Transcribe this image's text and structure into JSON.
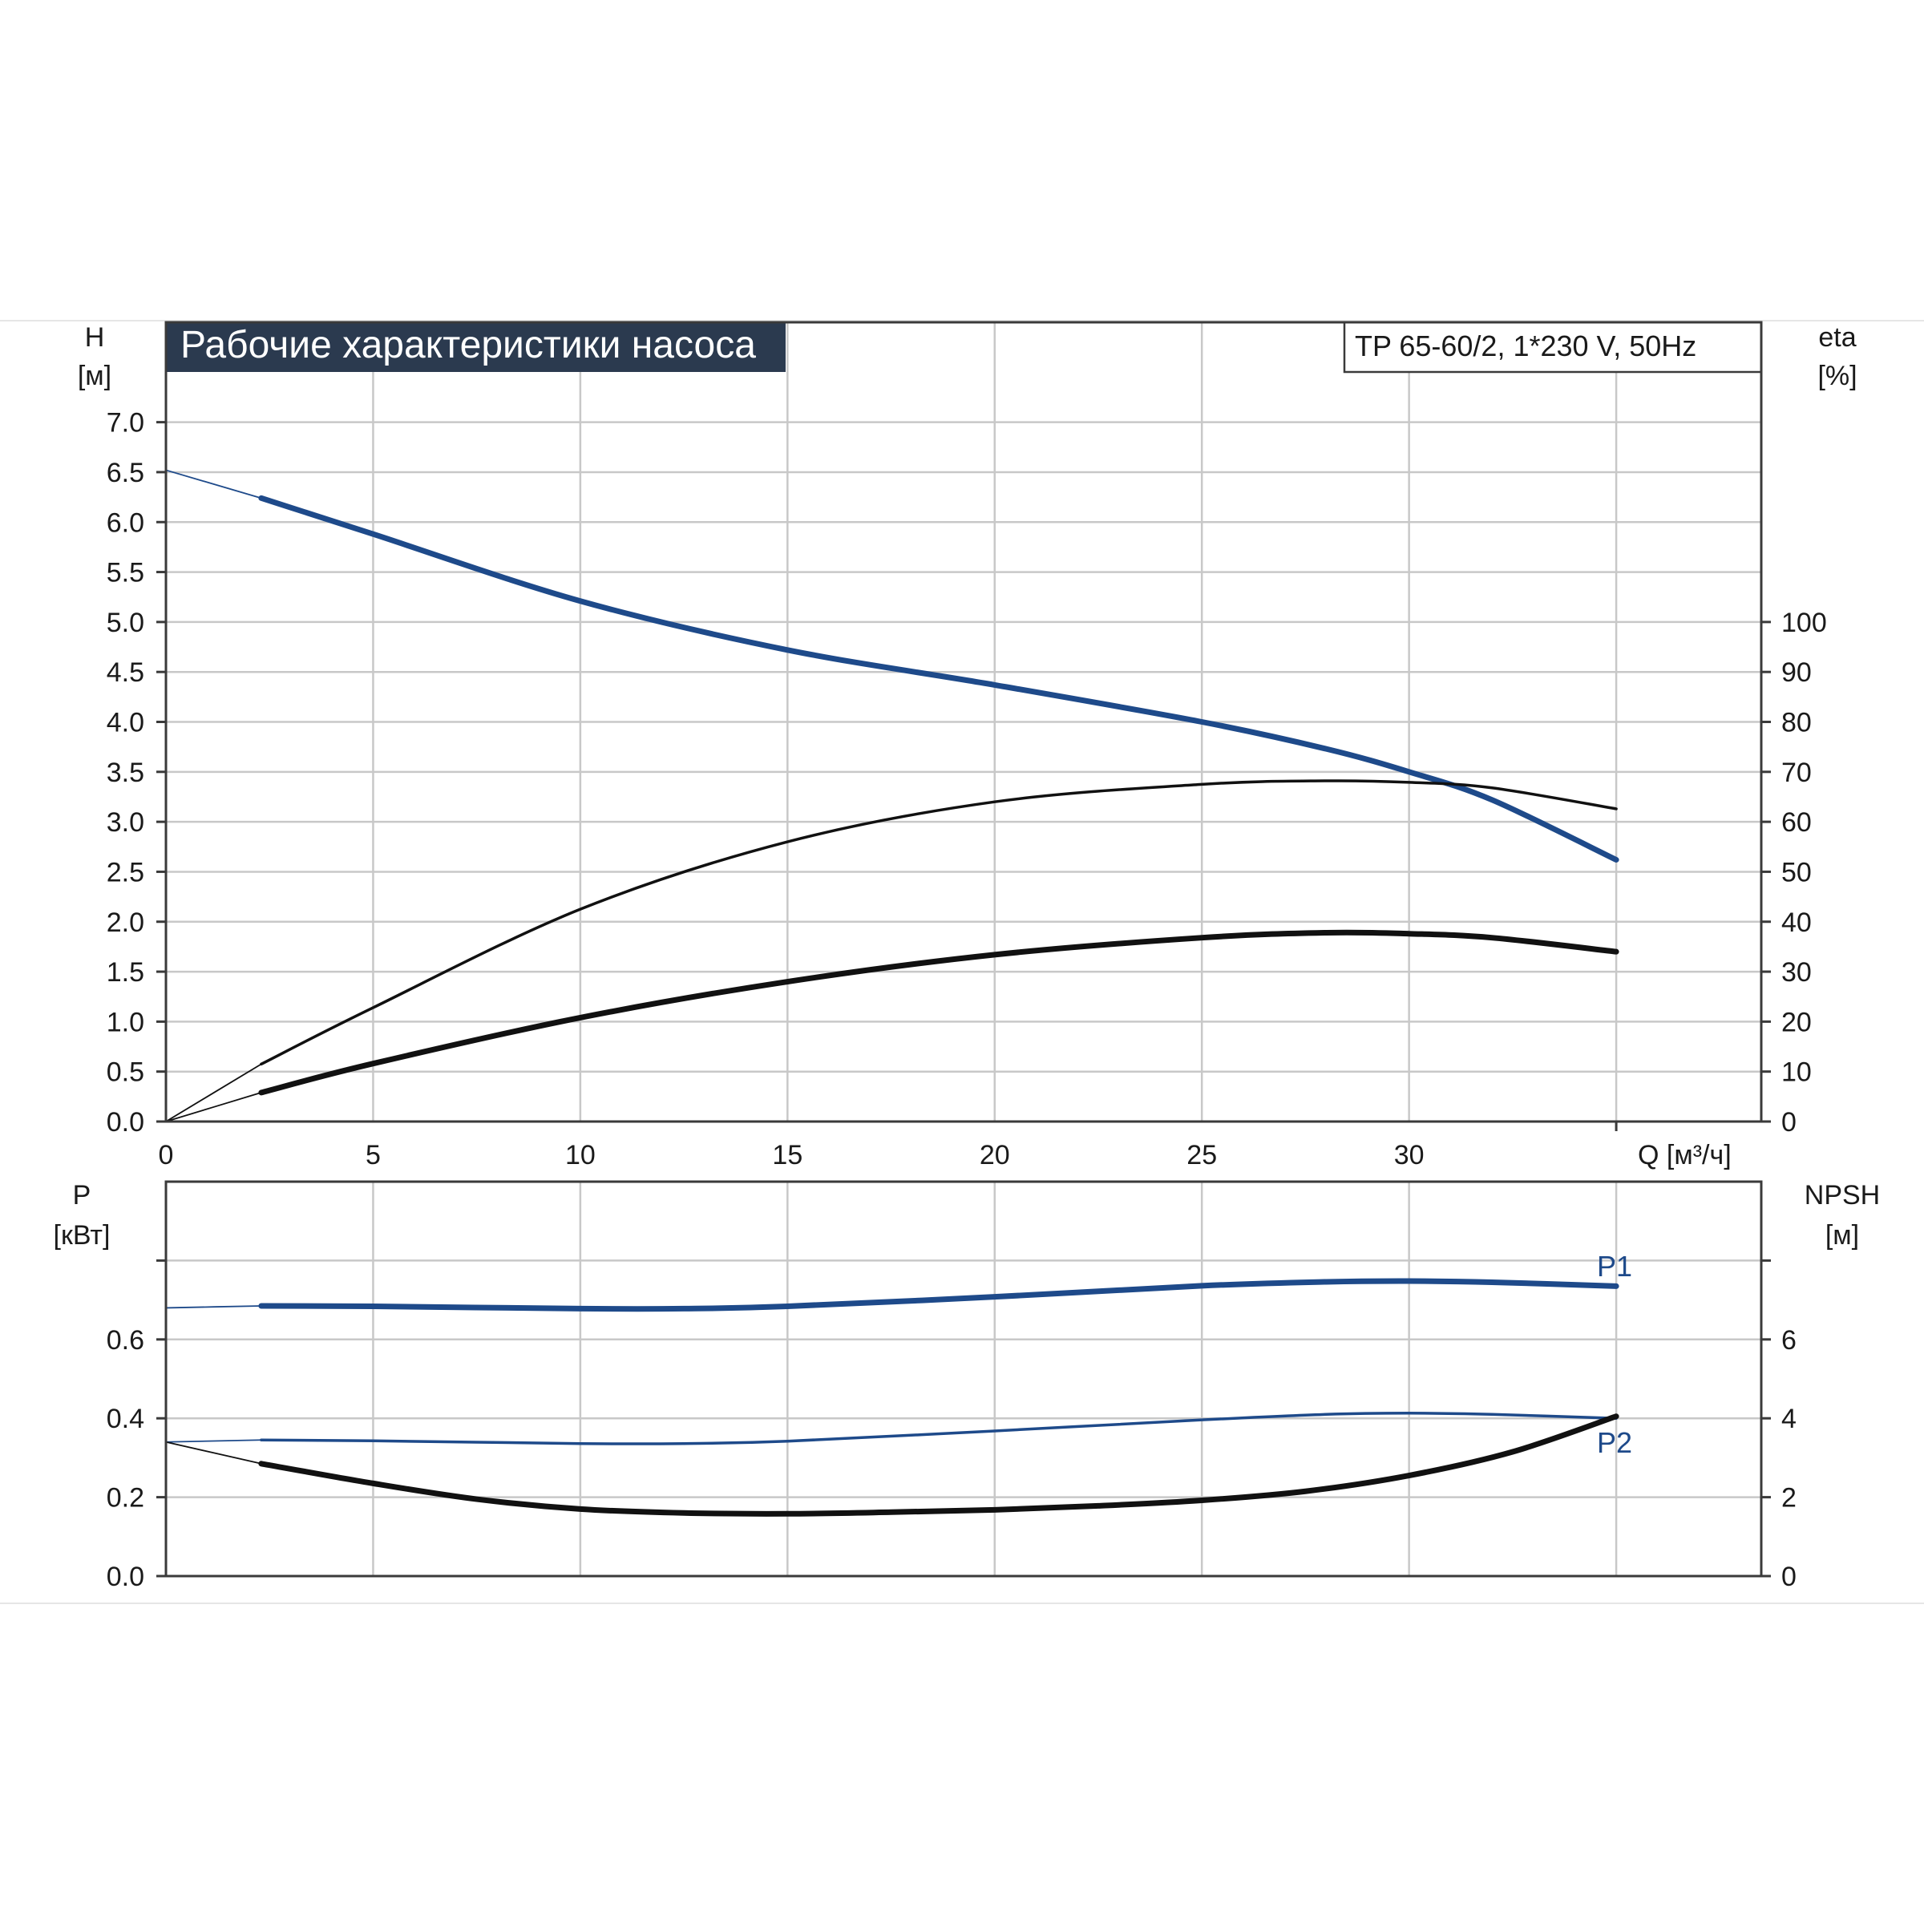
{
  "title": "Рабочие характеристики насоса",
  "model": "TP 65-60/2, 1*230 V, 50Hz",
  "colors": {
    "blue": "#1e4a8a",
    "black": "#111111",
    "title_bg": "#2b3a4f"
  },
  "top": {
    "left_axis": {
      "label_line1": "H",
      "label_line2": "[м]",
      "ticks": [
        "0.0",
        "0.5",
        "1.0",
        "1.5",
        "2.0",
        "2.5",
        "3.0",
        "3.5",
        "4.0",
        "4.5",
        "5.0",
        "5.5",
        "6.0",
        "6.5",
        "7.0"
      ],
      "range": [
        0,
        8
      ]
    },
    "right_axis": {
      "label_line1": "eta",
      "label_line2": "[%]",
      "ticks": [
        "0",
        "10",
        "20",
        "30",
        "40",
        "50",
        "60",
        "70",
        "80",
        "90",
        "100"
      ],
      "range": [
        0,
        160
      ]
    },
    "x_axis": {
      "label": "Q [м³/ч]",
      "ticks": [
        "0",
        "5",
        "10",
        "15",
        "20",
        "25",
        "30"
      ],
      "range": [
        0,
        38.5
      ]
    }
  },
  "bottom": {
    "left_axis": {
      "label_line1": "P",
      "label_line2": "[кВт]",
      "ticks": [
        "0.0",
        "0.2",
        "0.4",
        "0.6"
      ],
      "range": [
        0,
        1.0
      ]
    },
    "right_axis": {
      "label_line1": "NPSH",
      "label_line2": "[м]",
      "ticks": [
        "0",
        "2",
        "4",
        "6"
      ],
      "range": [
        0,
        10
      ]
    },
    "p1_label": "P1",
    "p2_label": "P2"
  },
  "chart_data": [
    {
      "type": "line",
      "title": "Рабочие характеристики насоса",
      "xlabel": "Q [м³/ч]",
      "ylabel": "H [м]",
      "y2label": "eta [%]",
      "xlim": [
        0,
        38.5
      ],
      "ylim": [
        0,
        8
      ],
      "y2lim": [
        0,
        160
      ],
      "grid": true,
      "series": [
        {
          "axis": "left",
          "color": "#1e4a8a",
          "style": "head",
          "x": [
            0,
            2.3,
            5,
            10,
            15,
            20,
            25,
            28,
            30,
            32,
            35
          ],
          "y": [
            6.52,
            6.24,
            5.88,
            5.21,
            4.72,
            4.37,
            4.0,
            3.73,
            3.5,
            3.22,
            2.62
          ]
        },
        {
          "axis": "right",
          "color": "#111111",
          "style": "thin",
          "x": [
            0,
            2.3,
            5,
            10,
            15,
            20,
            25,
            28,
            30,
            32,
            35
          ],
          "y": [
            0,
            11.5,
            22.8,
            42.5,
            56.0,
            64.0,
            67.5,
            68.2,
            67.9,
            66.8,
            62.6
          ]
        },
        {
          "axis": "right",
          "color": "#111111",
          "style": "thick",
          "x": [
            0,
            2.3,
            5,
            10,
            15,
            20,
            25,
            28,
            30,
            32,
            35
          ],
          "y": [
            0,
            5.8,
            11.6,
            20.8,
            28.0,
            33.4,
            36.8,
            37.8,
            37.6,
            36.8,
            34.0
          ]
        }
      ]
    },
    {
      "type": "line",
      "xlabel": "",
      "ylabel": "P [кВт]",
      "y2label": "NPSH [м]",
      "xlim": [
        0,
        38.5
      ],
      "ylim": [
        0,
        1.0
      ],
      "y2lim": [
        0,
        10
      ],
      "grid": true,
      "series": [
        {
          "name": "P1",
          "axis": "left",
          "color": "#1e4a8a",
          "style": "thick",
          "x": [
            0,
            2.3,
            5,
            10,
            12.5,
            15,
            20,
            25,
            28,
            30,
            32,
            35
          ],
          "y": [
            0.68,
            0.685,
            0.684,
            0.678,
            0.678,
            0.684,
            0.708,
            0.736,
            0.746,
            0.748,
            0.745,
            0.735
          ]
        },
        {
          "name": "P2",
          "axis": "left",
          "color": "#1e4a8a",
          "style": "thin",
          "x": [
            0,
            2.3,
            5,
            10,
            12.5,
            15,
            20,
            25,
            28,
            30,
            32,
            35
          ],
          "y": [
            0.34,
            0.345,
            0.343,
            0.336,
            0.336,
            0.342,
            0.368,
            0.396,
            0.41,
            0.413,
            0.41,
            0.4
          ]
        },
        {
          "axis": "right",
          "color": "#111111",
          "style": "thick",
          "x": [
            0,
            2.3,
            5,
            7.5,
            10,
            12.5,
            15,
            17.5,
            20,
            22.5,
            25,
            27.5,
            30,
            32.5,
            35
          ],
          "y": [
            3.4,
            2.85,
            2.35,
            1.95,
            1.7,
            1.6,
            1.58,
            1.62,
            1.68,
            1.78,
            1.92,
            2.15,
            2.55,
            3.15,
            4.05
          ]
        }
      ]
    }
  ]
}
